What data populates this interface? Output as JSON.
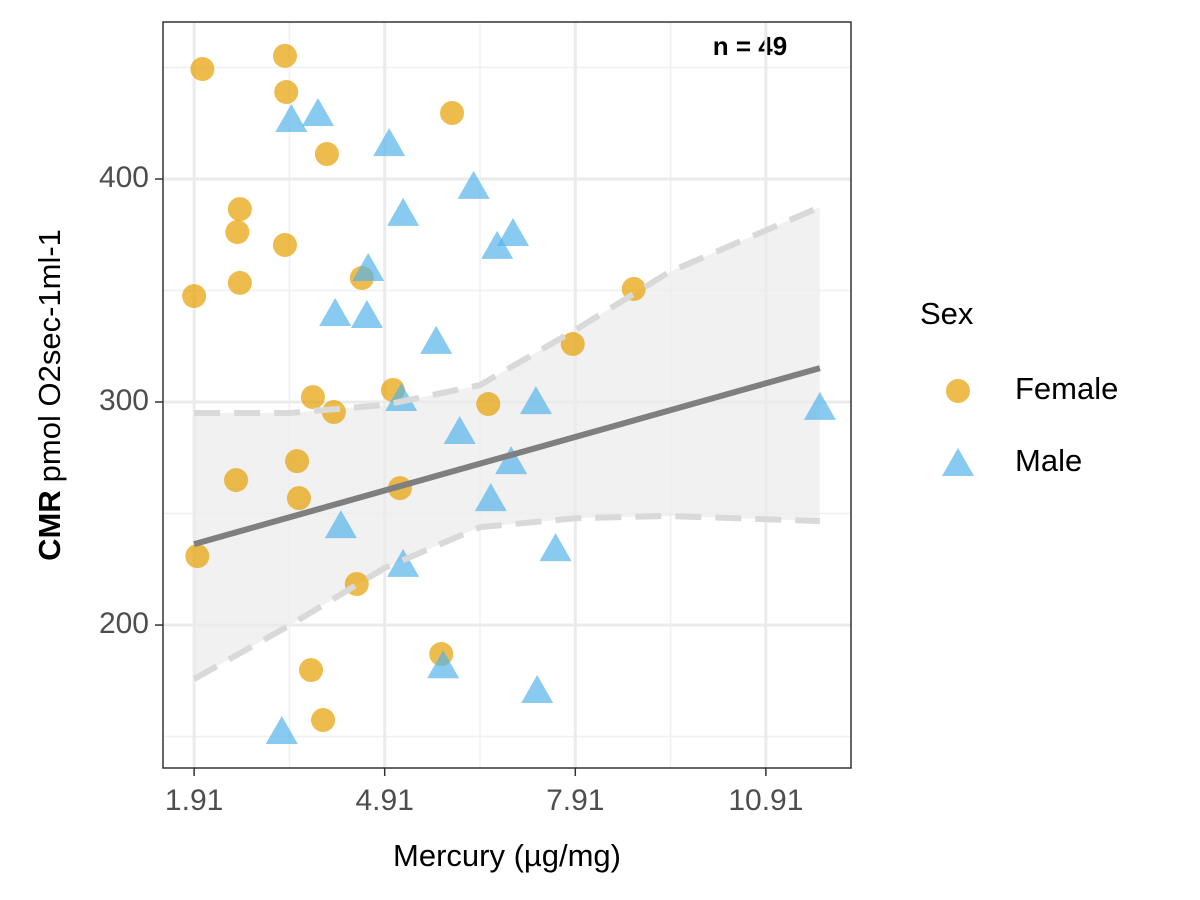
{
  "chart_data": {
    "type": "scatter",
    "x_label": "Mercury (µg/mg)",
    "y_label_bold": "CMR",
    "y_label": "pmol O2sec-1ml-1",
    "annotation": "n = 49",
    "legend_title": "Sex",
    "legend_position": "right",
    "grid": true,
    "xlim": [
      1.42,
      12.25
    ],
    "ylim": [
      135.9,
      470.4
    ],
    "xticks": [
      1.91,
      4.91,
      7.91,
      10.91
    ],
    "yticks": [
      200,
      300,
      400
    ],
    "x_minor_ticks": [
      3.41,
      6.41,
      9.41
    ],
    "y_minor_ticks": [
      150,
      250,
      350,
      450
    ],
    "series": [
      {
        "name": "Female",
        "marker": "circle",
        "color": "#E69F00",
        "x": [
          2.04,
          3.34,
          3.36,
          5.97,
          4.0,
          2.63,
          2.59,
          3.34,
          2.63,
          1.91,
          4.55,
          8.83,
          7.87,
          5.04,
          3.78,
          4.11,
          6.54,
          3.53,
          2.57,
          3.56,
          5.15,
          1.96,
          4.47,
          5.8,
          3.75,
          3.94
        ],
        "values": [
          449.3,
          455.2,
          439.0,
          429.6,
          411.2,
          386.5,
          376.2,
          370.4,
          353.4,
          347.5,
          355.6,
          350.7,
          326.0,
          305.4,
          302.2,
          295.5,
          299.1,
          273.5,
          265.0,
          256.9,
          261.4,
          230.9,
          218.4,
          187.0,
          179.8,
          157.4
        ]
      },
      {
        "name": "Male",
        "marker": "triangle",
        "color": "#56B4E9",
        "x": [
          3.44,
          3.86,
          4.98,
          6.31,
          5.2,
          6.93,
          6.68,
          4.65,
          4.13,
          4.63,
          5.72,
          5.17,
          7.29,
          11.76,
          6.09,
          6.9,
          6.58,
          4.22,
          5.2,
          7.6,
          5.83,
          7.31,
          3.29
        ],
        "values": [
          426.9,
          429.6,
          416.1,
          396.9,
          384.8,
          375.8,
          370.0,
          360.1,
          339.9,
          339.0,
          327.4,
          301.8,
          300.4,
          297.8,
          287.0,
          273.5,
          256.9,
          244.8,
          227.4,
          234.5,
          182.0,
          170.9,
          152.5
        ]
      }
    ],
    "fit": {
      "color": "#7f7f7f",
      "x": [
        1.91,
        11.76
      ],
      "y": [
        236.3,
        315.2
      ]
    },
    "ci": {
      "color": "#d9d9d9",
      "x": [
        1.91,
        3.42,
        4.91,
        6.41,
        7.91,
        9.39,
        11.76
      ],
      "upper": [
        295.1,
        295.1,
        298.7,
        307.6,
        332.3,
        358.3,
        387.4
      ],
      "lower": [
        175.8,
        200.0,
        225.6,
        243.9,
        247.9,
        248.9,
        246.6
      ]
    }
  }
}
